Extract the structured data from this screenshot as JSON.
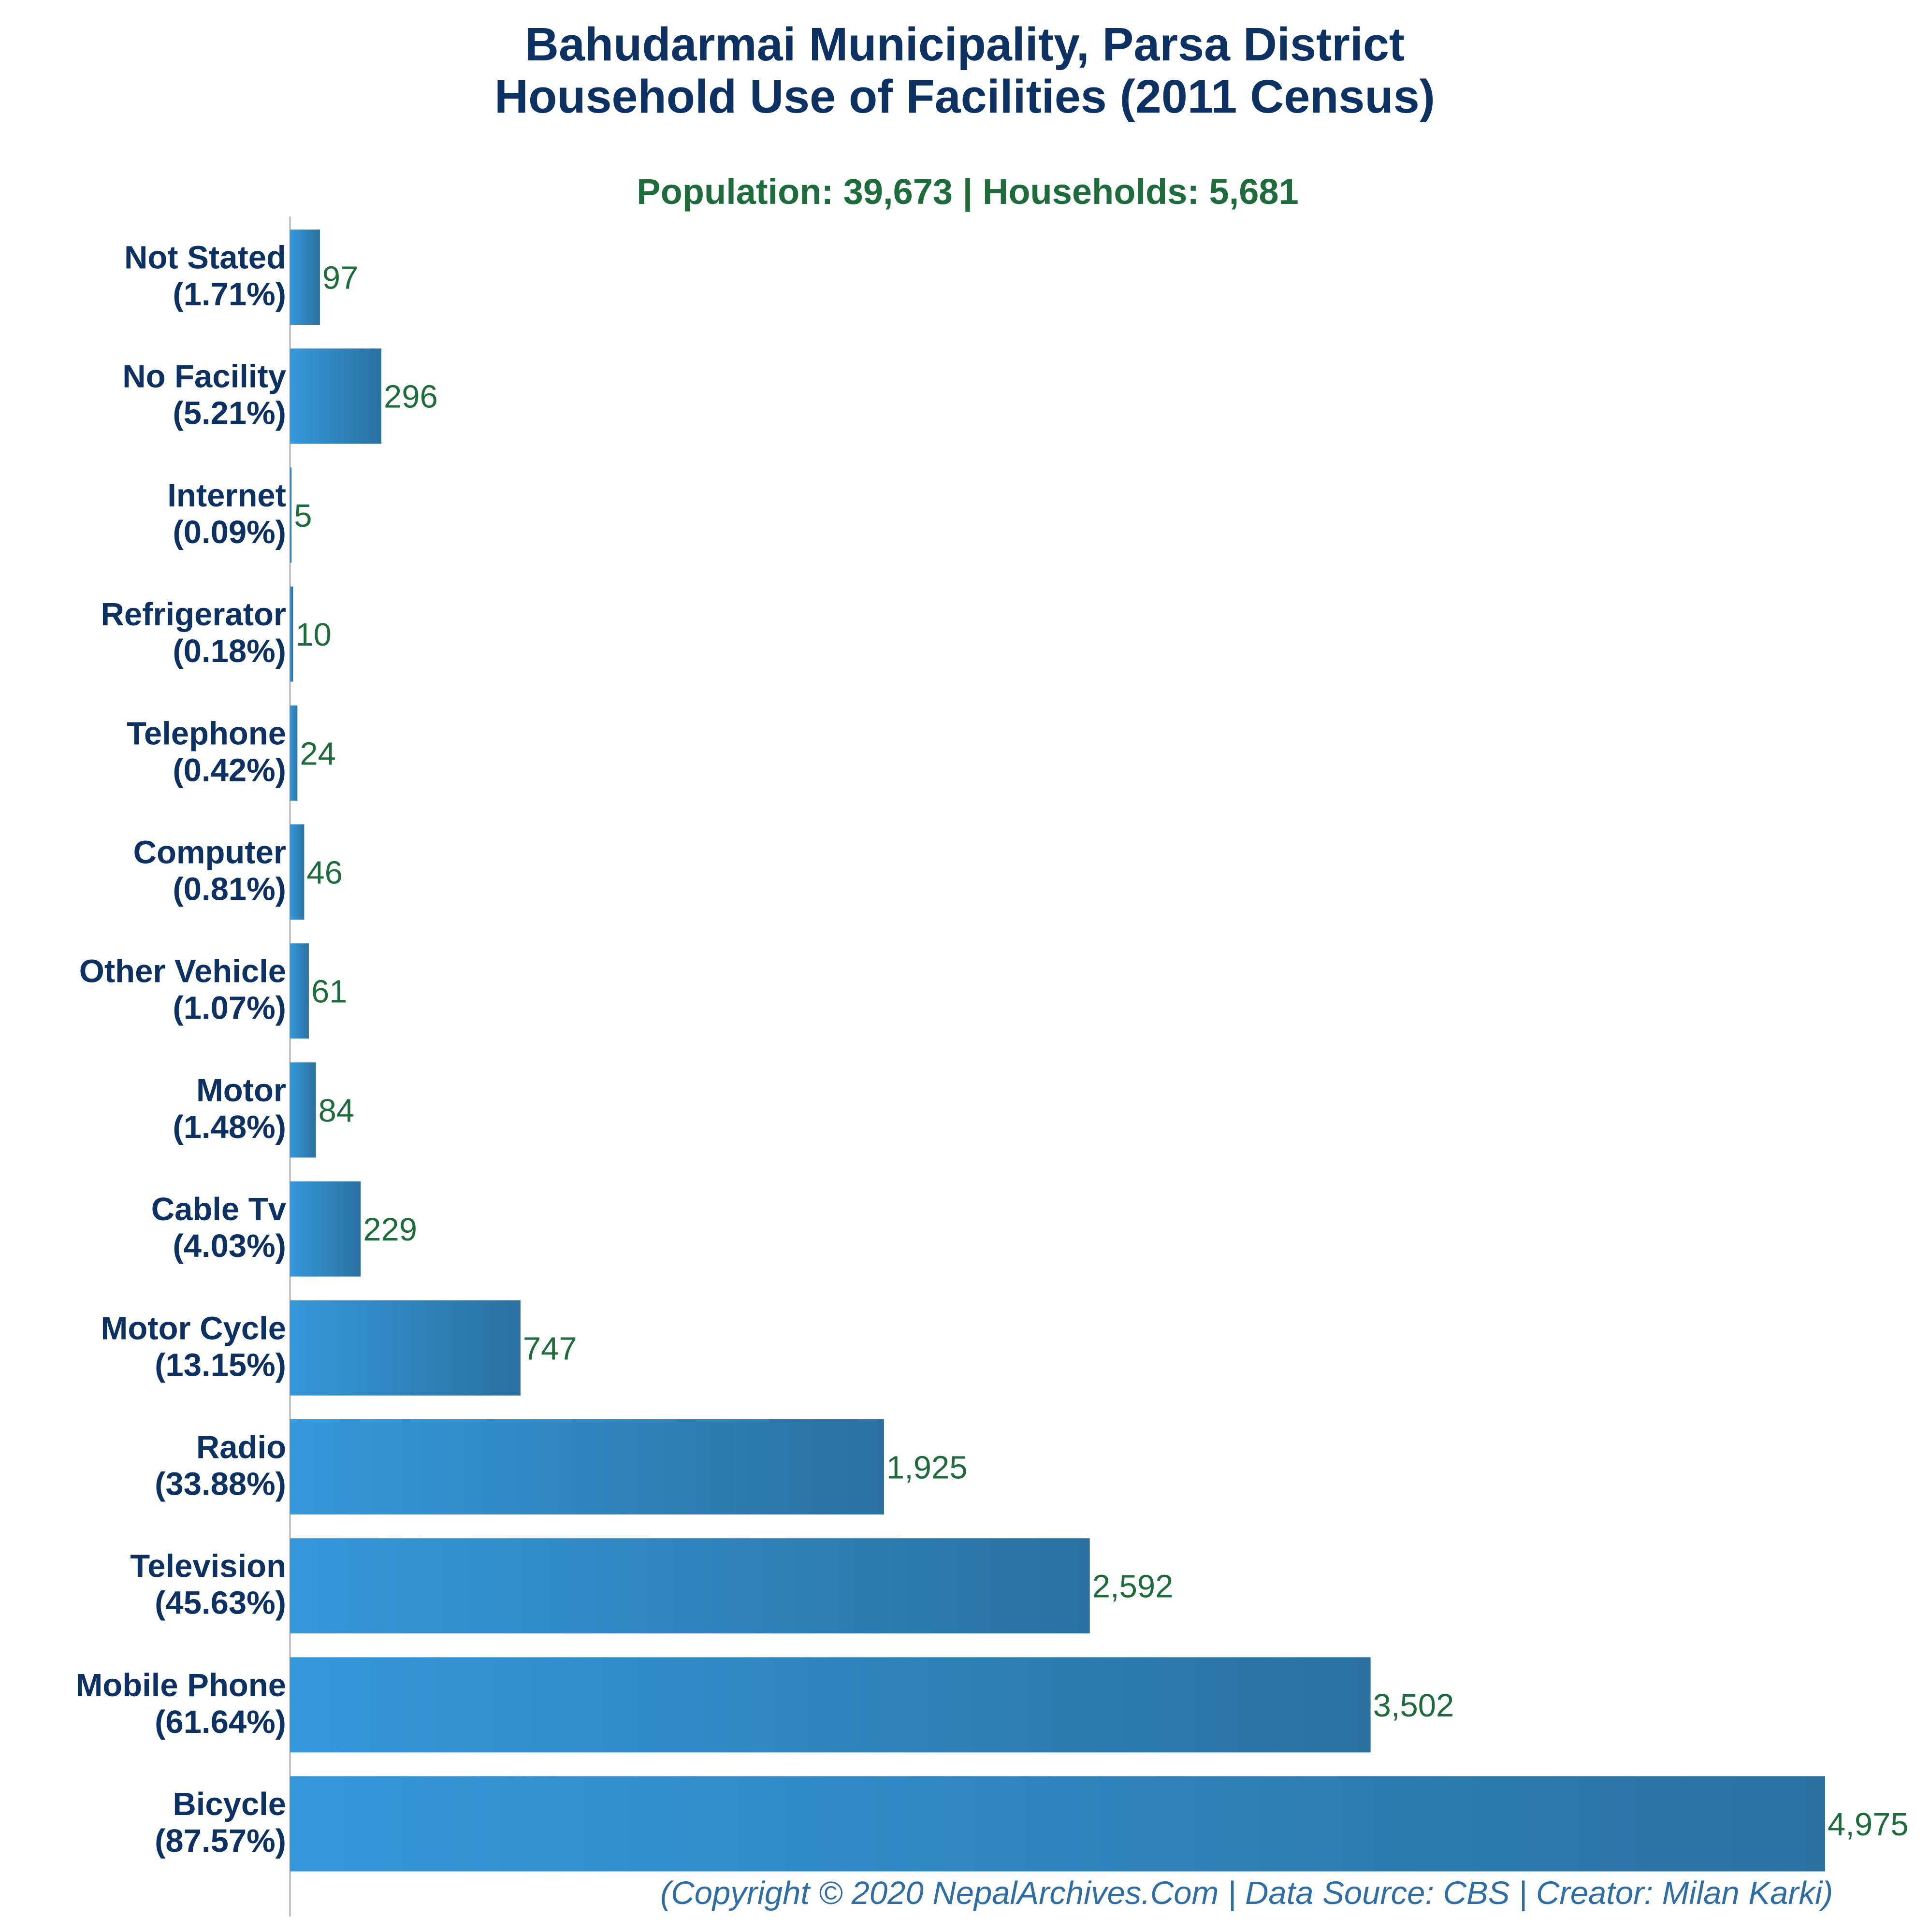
{
  "colors": {
    "title": "#0d3162",
    "subtitle": "#1e6b3c",
    "category_label": "#0d3162",
    "value_label": "#1e6b3c",
    "bar_gradient_start": "#3598db",
    "bar_gradient_end": "#2a71a0",
    "axis_line": "#b0b0b0",
    "footer": "#2f6ea5",
    "background": "#ffffff"
  },
  "chart_data": {
    "type": "bar",
    "orientation": "horizontal",
    "title_lines": [
      "Bahudarmai Municipality, Parsa District",
      "Household Use of Facilities (2011 Census)"
    ],
    "subtitle": "Population: 39,673 | Households: 5,681",
    "categories": [
      {
        "name": "Not Stated",
        "percent": "(1.71%)",
        "value": 97,
        "value_label": "97"
      },
      {
        "name": "No Facility",
        "percent": "(5.21%)",
        "value": 296,
        "value_label": "296"
      },
      {
        "name": "Internet",
        "percent": "(0.09%)",
        "value": 5,
        "value_label": "5"
      },
      {
        "name": "Refrigerator",
        "percent": "(0.18%)",
        "value": 10,
        "value_label": "10"
      },
      {
        "name": "Telephone",
        "percent": "(0.42%)",
        "value": 24,
        "value_label": "24"
      },
      {
        "name": "Computer",
        "percent": "(0.81%)",
        "value": 46,
        "value_label": "46"
      },
      {
        "name": "Other Vehicle",
        "percent": "(1.07%)",
        "value": 61,
        "value_label": "61"
      },
      {
        "name": "Motor",
        "percent": "(1.48%)",
        "value": 84,
        "value_label": "84"
      },
      {
        "name": "Cable Tv",
        "percent": "(4.03%)",
        "value": 229,
        "value_label": "229"
      },
      {
        "name": "Motor Cycle",
        "percent": "(13.15%)",
        "value": 747,
        "value_label": "747"
      },
      {
        "name": "Radio",
        "percent": "(33.88%)",
        "value": 1925,
        "value_label": "1,925"
      },
      {
        "name": "Television",
        "percent": "(45.63%)",
        "value": 2592,
        "value_label": "2,592"
      },
      {
        "name": "Mobile Phone",
        "percent": "(61.64%)",
        "value": 3502,
        "value_label": "3,502"
      },
      {
        "name": "Bicycle",
        "percent": "(87.57%)",
        "value": 4975,
        "value_label": "4,975"
      }
    ],
    "xlim": [
      0,
      4975
    ],
    "grid": false,
    "legend": "none"
  },
  "footer": "(Copyright © 2020 NepalArchives.Com | Data Source: CBS | Creator: Milan Karki)"
}
